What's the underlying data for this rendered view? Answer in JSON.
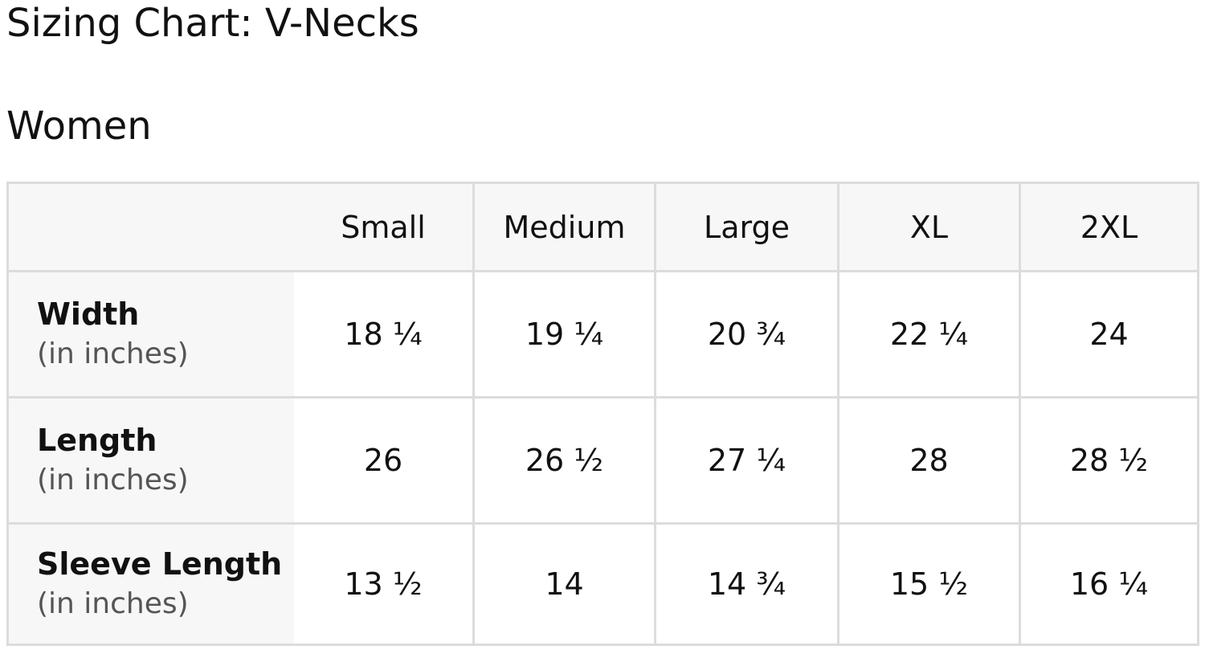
{
  "page": {
    "title": "Sizing Chart: V-Necks",
    "subtitle": "Women"
  },
  "table": {
    "columns": [
      "Small",
      "Medium",
      "Large",
      "XL",
      "2XL"
    ],
    "rows": [
      {
        "name": "Width",
        "unit": "(in inches)",
        "values": [
          "18 ¼",
          "19 ¼",
          "20 ¾",
          "22 ¼",
          "24"
        ]
      },
      {
        "name": "Length",
        "unit": "(in inches)",
        "values": [
          "26",
          "26 ½",
          "27 ¼",
          "28",
          "28 ½"
        ]
      },
      {
        "name": "Sleeve Length",
        "unit": "(in inches)",
        "values": [
          "13 ½",
          "14",
          "14 ¾",
          "15 ½",
          "16 ¼"
        ]
      }
    ]
  }
}
